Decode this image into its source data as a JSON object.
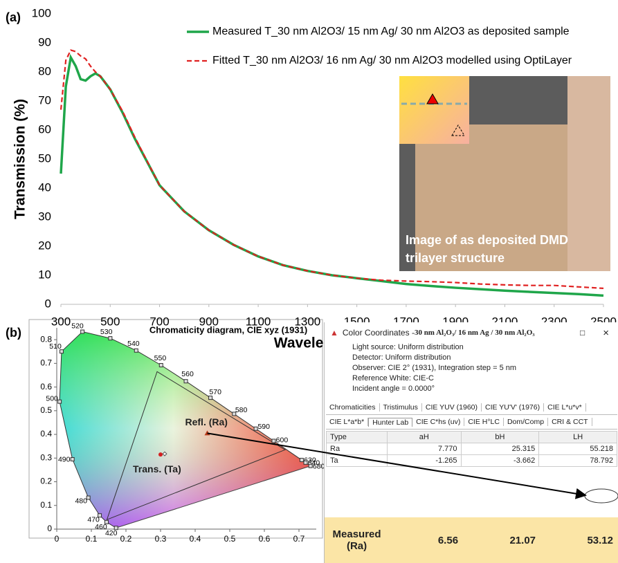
{
  "chart_data": [
    {
      "type": "line",
      "panel": "(a)",
      "x_label": "Wavelength (nm)",
      "y_label": "Transmission (%)",
      "x": [
        300,
        320,
        340,
        360,
        380,
        400,
        420,
        440,
        460,
        500,
        550,
        600,
        700,
        800,
        900,
        1000,
        1100,
        1200,
        1300,
        1400,
        1500,
        1600,
        1700,
        1800,
        1900,
        2000,
        2100,
        2200,
        2300,
        2400,
        2500
      ],
      "series": [
        {
          "name": "Measured T_30 nm Al2O3/ 15 nm Ag/ 30 nm Al2O3 as deposited sample",
          "color": "#1fa64a",
          "dashed": false,
          "values": [
            45,
            75,
            85,
            82,
            77.5,
            77,
            78.5,
            79.5,
            78.5,
            74,
            66,
            57,
            41,
            32,
            25.5,
            20.5,
            16.5,
            13.5,
            11.5,
            10,
            9,
            8,
            7,
            6.3,
            5.7,
            5.2,
            4.7,
            4.3,
            3.9,
            3.5,
            3
          ]
        },
        {
          "name": "Fitted T_30 nm Al2O3/ 16 nm Ag/ 30 nm Al2O3 modelled using OptiLayer",
          "color": "#e02020",
          "dashed": true,
          "values": [
            67,
            84,
            87.5,
            87,
            85.5,
            84.5,
            82,
            80,
            78.5,
            74,
            66.5,
            57.5,
            41,
            32,
            25.5,
            20.5,
            16.5,
            13.5,
            11.5,
            10,
            9,
            8.3,
            8,
            7.8,
            7.5,
            7,
            6.7,
            6.5,
            6.5,
            6,
            5.5
          ]
        }
      ],
      "xlim": [
        300,
        2500
      ],
      "xticks": [
        300,
        500,
        700,
        900,
        1100,
        1300,
        1500,
        1700,
        1900,
        2100,
        2300,
        2500
      ],
      "ylim": [
        0,
        100
      ],
      "yticks": [
        0,
        10,
        20,
        30,
        40,
        50,
        60,
        70,
        80,
        90,
        100
      ],
      "grid": false
    },
    {
      "type": "scatter",
      "panel": "(b)",
      "title": "Chromaticity diagram, CIE xyz (1931)",
      "xlim": [
        0,
        0.75
      ],
      "xticks": [
        0,
        0.1,
        0.2,
        0.3,
        0.4,
        0.5,
        0.6,
        0.7
      ],
      "ylim": [
        0,
        0.85
      ],
      "yticks": [
        0,
        0.1,
        0.2,
        0.3,
        0.4,
        0.5,
        0.6,
        0.7,
        0.8
      ],
      "locus": {
        "wavelengths": [
          420,
          460,
          470,
          480,
          490,
          500,
          510,
          520,
          530,
          540,
          550,
          560,
          570,
          580,
          590,
          600,
          630,
          640,
          680
        ],
        "x": [
          0.1714,
          0.144,
          0.1241,
          0.0913,
          0.0454,
          0.0082,
          0.0139,
          0.0743,
          0.1547,
          0.2296,
          0.3016,
          0.3731,
          0.4441,
          0.5125,
          0.5752,
          0.627,
          0.7079,
          0.719,
          0.7334
        ],
        "y": [
          0.0051,
          0.0297,
          0.0578,
          0.1327,
          0.295,
          0.5384,
          0.7502,
          0.8338,
          0.8059,
          0.7543,
          0.6923,
          0.6245,
          0.5547,
          0.4866,
          0.4242,
          0.3725,
          0.292,
          0.2809,
          0.2666
        ]
      },
      "points": [
        {
          "label": "Refl. (Ra)",
          "x": 0.435,
          "y": 0.405,
          "color": "#b83a1a"
        },
        {
          "label": "Trans. (Ta)",
          "x": 0.3,
          "y": 0.315,
          "color": "#d32020"
        }
      ]
    }
  ],
  "inset": {
    "caption": [
      "Image of as deposited DMD",
      "trilayer structure"
    ]
  },
  "color_window": {
    "title": "Color Coordinates - ",
    "title_sample": "30 nm Al₂O₃/ 16 nm Ag / 30 nm Al₂O₃",
    "info": [
      "Light source: Uniform distribution",
      "Detector: Uniform distribution",
      "Observer: CIE 2° (1931),   Integration step = 5 nm",
      "Reference White: CIE-C",
      "Incident angle = 0.0000°"
    ],
    "tabs_row1": [
      "Chromaticities",
      "Tristimulus",
      "CIE YUV (1960)",
      "CIE YU'V' (1976)",
      "CIE L*u*v*"
    ],
    "tabs_row2": [
      "CIE L*a*b*",
      "Hunter Lab",
      "CIE C*hs (uv)",
      "CIE H°LC",
      "Dom/Comp",
      "CRI & CCT"
    ],
    "table": {
      "header": [
        "Type",
        "aH",
        "bH",
        "LH"
      ],
      "rows": [
        [
          "Ra",
          "7.770",
          "25.315",
          "55.218"
        ],
        [
          "Ta",
          "-1.265",
          "-3.662",
          "78.792"
        ]
      ]
    },
    "measured": [
      "Measured (Ra)",
      "6.56",
      "21.07",
      "53.12"
    ]
  }
}
